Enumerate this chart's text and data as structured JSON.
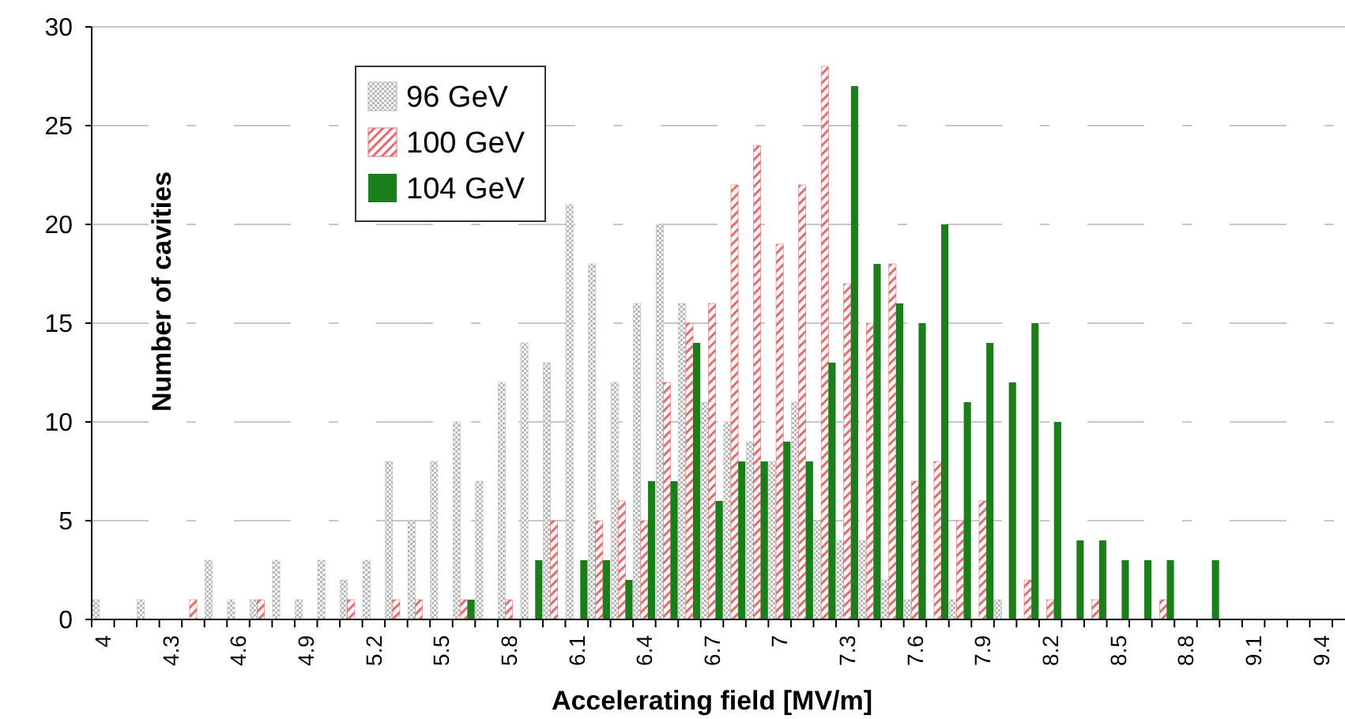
{
  "chart_data": {
    "type": "bar",
    "xlabel": "Accelerating field [MV/m]",
    "ylabel": "Number of cavities",
    "categories": [
      "4",
      null,
      null,
      "4.3",
      null,
      null,
      "4.6",
      null,
      null,
      "4.9",
      null,
      null,
      "5.2",
      null,
      null,
      "5.5",
      null,
      null,
      "5.8",
      null,
      null,
      "6.1",
      null,
      null,
      "6.4",
      null,
      null,
      "6.7",
      null,
      null,
      "7",
      null,
      null,
      "7.3",
      null,
      null,
      "7.6",
      null,
      null,
      "7.9",
      null,
      null,
      "8.2",
      null,
      null,
      "8.5",
      null,
      null,
      "8.8",
      null,
      null,
      "9.1",
      null,
      null,
      "9.4"
    ],
    "series": [
      {
        "name": "96 GeV",
        "color": "#b8b8b8",
        "values": [
          1,
          0,
          1,
          0,
          0,
          3,
          1,
          1,
          3,
          1,
          3,
          2,
          3,
          8,
          5,
          8,
          10,
          7,
          12,
          14,
          13,
          21,
          18,
          12,
          16,
          20,
          16,
          11,
          10,
          9,
          8,
          11,
          5,
          4,
          4,
          2,
          1,
          0,
          1,
          0,
          1,
          0,
          0,
          0,
          0,
          0,
          0,
          0,
          0,
          0,
          0,
          0,
          0,
          0,
          0
        ]
      },
      {
        "name": "100 GeV",
        "color": "#e07070",
        "values": [
          0,
          0,
          0,
          0,
          1,
          0,
          0,
          1,
          0,
          0,
          0,
          1,
          0,
          1,
          1,
          0,
          1,
          0,
          1,
          0,
          5,
          0,
          5,
          6,
          5,
          12,
          15,
          16,
          22,
          24,
          19,
          22,
          28,
          17,
          15,
          18,
          7,
          8,
          5,
          6,
          0,
          2,
          1,
          0,
          1,
          0,
          0,
          1,
          0,
          0,
          0,
          0,
          0,
          0,
          0
        ]
      },
      {
        "name": "104 GeV",
        "color": "#1a7f1a",
        "values": [
          0,
          0,
          0,
          0,
          0,
          0,
          0,
          0,
          0,
          0,
          0,
          0,
          0,
          0,
          0,
          0,
          1,
          0,
          0,
          3,
          0,
          3,
          3,
          2,
          7,
          7,
          14,
          6,
          8,
          8,
          9,
          8,
          13,
          27,
          18,
          16,
          15,
          20,
          11,
          14,
          12,
          15,
          10,
          4,
          4,
          3,
          3,
          3,
          0,
          3,
          0,
          0,
          0,
          0,
          0
        ]
      }
    ],
    "ylim": [
      0,
      30
    ],
    "yticks": [
      0,
      5,
      10,
      15,
      20,
      25,
      30
    ],
    "grid": "y",
    "legend": "top left"
  }
}
